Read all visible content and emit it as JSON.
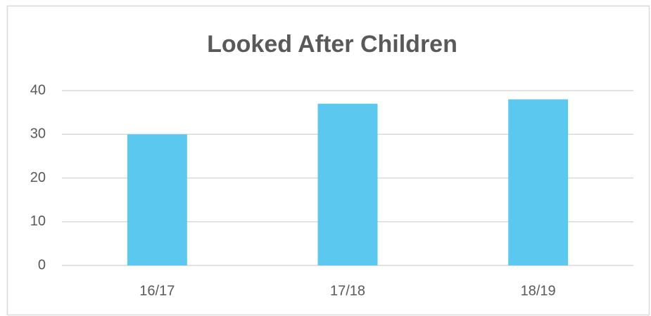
{
  "chart_data": {
    "type": "bar",
    "title": "Looked After Children",
    "categories": [
      "16/17",
      "17/18",
      "18/19"
    ],
    "values": [
      30,
      37,
      38
    ],
    "color": "#5bc8f0",
    "ylim": [
      0,
      40
    ],
    "yticks": [
      0,
      10,
      20,
      30,
      40
    ],
    "grid": true
  }
}
